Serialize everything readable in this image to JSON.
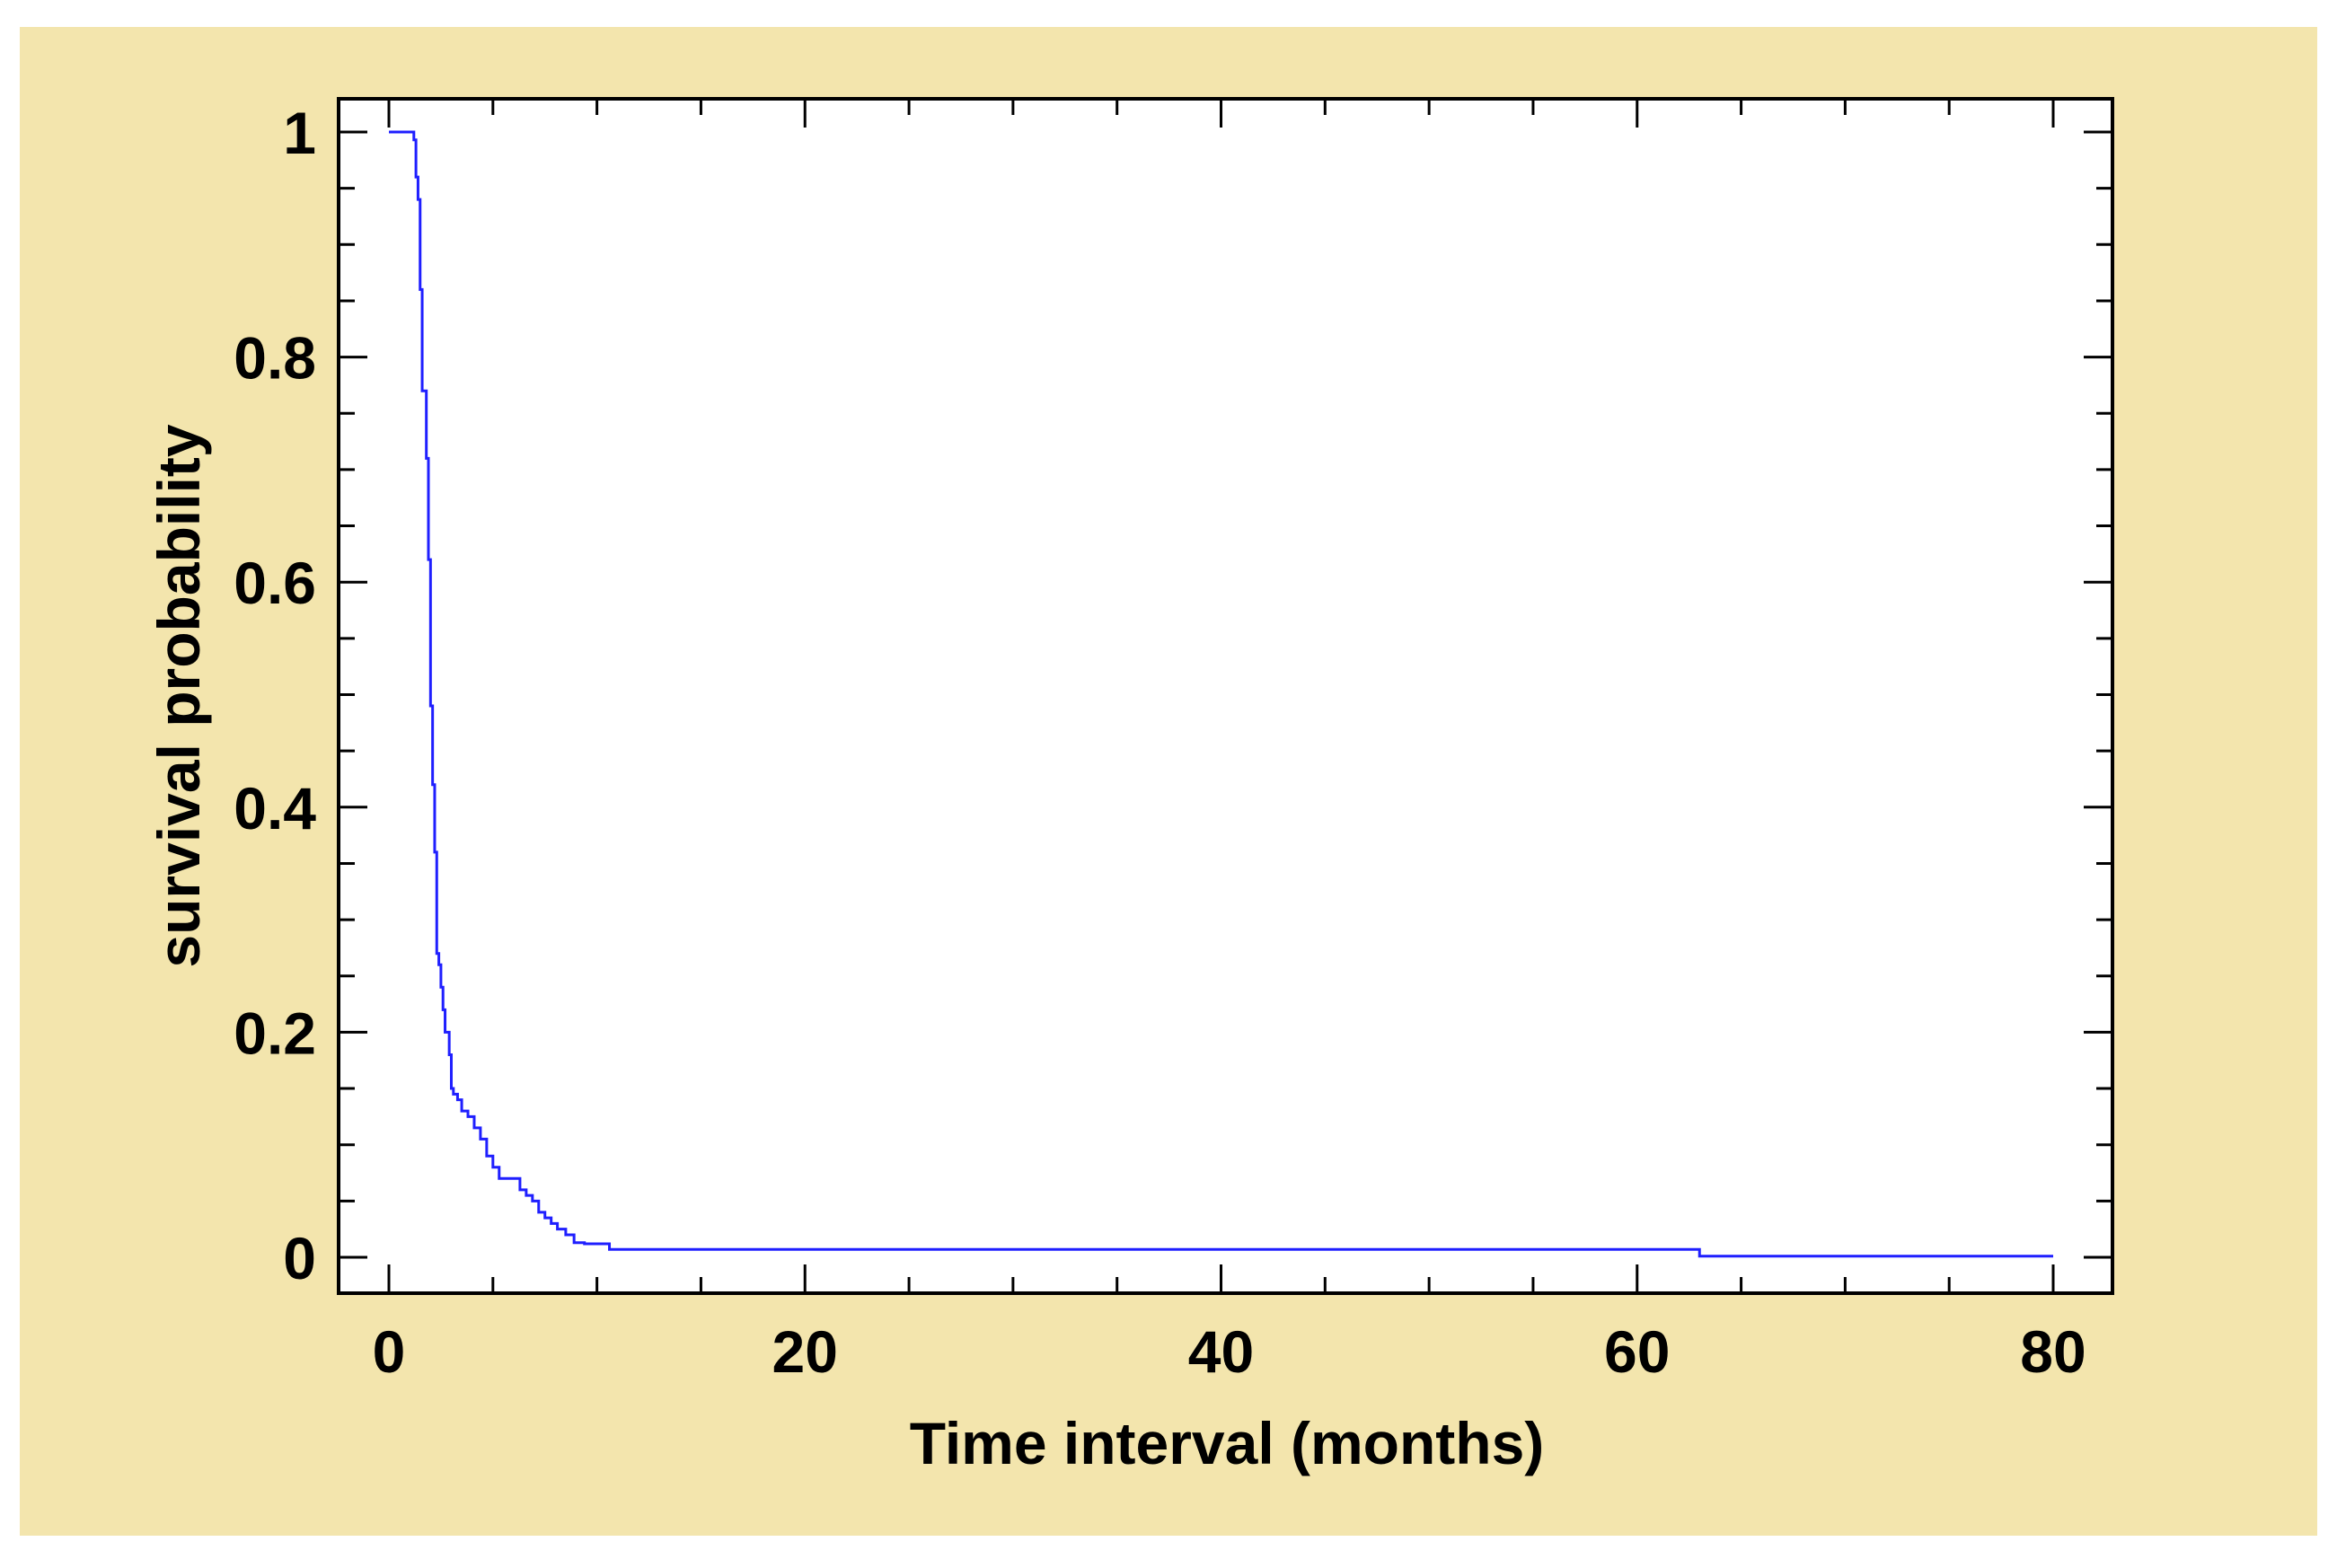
{
  "chart_data": {
    "type": "line",
    "title": "",
    "xlabel": "Time interval (months)",
    "ylabel": "survival probability",
    "xlim": [
      0,
      80
    ],
    "ylim": [
      0,
      1
    ],
    "x_ticks": [
      0,
      20,
      40,
      60,
      80
    ],
    "x_tick_labels": [
      "0",
      "20",
      "40",
      "60",
      "80"
    ],
    "y_ticks": [
      0,
      0.2,
      0.4,
      0.6,
      0.8,
      1
    ],
    "y_tick_labels": [
      "0",
      "0.2",
      "0.4",
      "0.6",
      "0.8",
      "1"
    ],
    "grid": false,
    "legend": "none",
    "step": true,
    "series": [
      {
        "color": "#1f1fff",
        "x": [
          0,
          1,
          1.2,
          1.3,
          1.4,
          1.5,
          1.6,
          1.8,
          1.9,
          2.0,
          2.1,
          2.2,
          2.3,
          2.4,
          2.5,
          2.6,
          2.7,
          2.9,
          3.0,
          3.1,
          3.3,
          3.5,
          3.8,
          4.1,
          4.4,
          4.7,
          5.0,
          5.3,
          5.6,
          6.3,
          6.6,
          6.9,
          7.2,
          7.5,
          7.8,
          8.1,
          8.5,
          8.9,
          9.4,
          10.0,
          10.6,
          12.0,
          20.0,
          40.0,
          60.0,
          63.0,
          70.0,
          80.0
        ],
        "y": [
          1.0,
          1.0,
          0.993,
          0.96,
          0.94,
          0.86,
          0.77,
          0.71,
          0.62,
          0.49,
          0.42,
          0.36,
          0.27,
          0.26,
          0.24,
          0.22,
          0.2,
          0.18,
          0.15,
          0.145,
          0.14,
          0.13,
          0.125,
          0.115,
          0.105,
          0.09,
          0.08,
          0.07,
          0.07,
          0.06,
          0.055,
          0.05,
          0.04,
          0.035,
          0.03,
          0.025,
          0.02,
          0.013,
          0.012,
          0.012,
          0.007,
          0.007,
          0.007,
          0.007,
          0.007,
          0.001,
          0.001,
          0.001
        ]
      }
    ]
  }
}
